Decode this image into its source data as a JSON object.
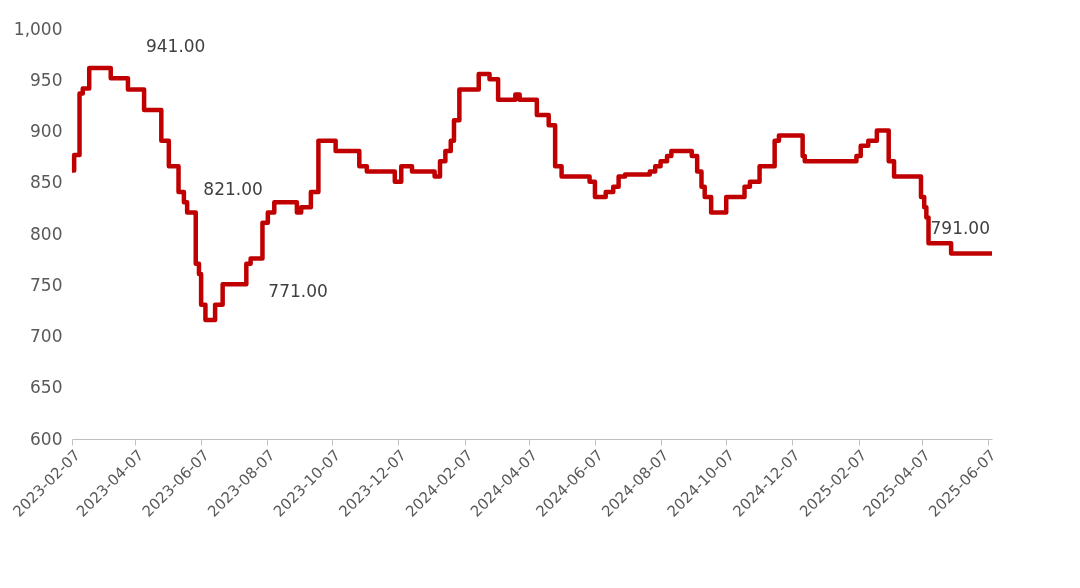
{
  "chart_data": {
    "type": "step",
    "x": [
      "2023-02-07",
      "2023-02-09",
      "2023-02-14",
      "2023-02-17",
      "2023-02-23",
      "2023-03-15",
      "2023-03-31",
      "2023-04-15",
      "2023-05-01",
      "2023-05-08",
      "2023-05-17",
      "2023-05-22",
      "2023-05-25",
      "2023-06-02",
      "2023-06-05",
      "2023-06-07",
      "2023-06-11",
      "2023-06-20",
      "2023-06-27",
      "2023-07-19",
      "2023-07-23",
      "2023-08-03",
      "2023-08-08",
      "2023-08-14",
      "2023-09-04",
      "2023-09-08",
      "2023-09-17",
      "2023-09-24",
      "2023-10-10",
      "2023-11-01",
      "2023-11-08",
      "2023-12-04",
      "2023-12-10",
      "2023-12-20",
      "2024-01-10",
      "2024-01-15",
      "2024-01-20",
      "2024-01-25",
      "2024-01-28",
      "2024-02-02",
      "2024-02-20",
      "2024-03-01",
      "2024-03-09",
      "2024-03-25",
      "2024-03-29",
      "2024-04-14",
      "2024-04-25",
      "2024-05-01",
      "2024-05-07",
      "2024-06-02",
      "2024-06-07",
      "2024-06-17",
      "2024-06-24",
      "2024-06-29",
      "2024-07-05",
      "2024-07-28",
      "2024-08-02",
      "2024-08-07",
      "2024-08-13",
      "2024-08-17",
      "2024-09-05",
      "2024-09-10",
      "2024-09-14",
      "2024-09-17",
      "2024-09-23",
      "2024-10-07",
      "2024-10-24",
      "2024-10-29",
      "2024-11-07",
      "2024-11-21",
      "2024-11-25",
      "2024-12-17",
      "2024-12-19",
      "2025-02-05",
      "2025-02-09",
      "2025-02-16",
      "2025-02-24",
      "2025-03-07",
      "2025-03-12",
      "2025-04-06",
      "2025-04-09",
      "2025-04-11",
      "2025-04-13",
      "2025-05-04",
      "2025-06-11"
    ],
    "series": [
      {
        "color": "#c00000",
        "values": [
          862,
          877,
          937,
          942,
          962,
          952,
          941,
          921,
          891,
          866,
          841,
          831,
          821,
          771,
          761,
          731,
          716,
          731,
          751,
          771,
          776,
          811,
          821,
          831,
          821,
          826,
          841,
          891,
          881,
          866,
          861,
          851,
          866,
          861,
          856,
          871,
          881,
          891,
          911,
          941,
          956,
          951,
          931,
          936,
          931,
          916,
          906,
          866,
          856,
          851,
          836,
          841,
          846,
          856,
          858,
          861,
          866,
          871,
          876,
          881,
          876,
          861,
          846,
          836,
          821,
          836,
          846,
          851,
          866,
          891,
          896,
          876,
          871,
          876,
          886,
          891,
          901,
          871,
          856,
          836,
          826,
          816,
          791,
          781,
          781
        ]
      }
    ],
    "xlim": [
      "2023-02-07",
      "2025-06-11"
    ],
    "xticks": [
      "2023-02-07",
      "2023-04-07",
      "2023-06-07",
      "2023-08-07",
      "2023-10-07",
      "2023-12-07",
      "2024-02-07",
      "2024-04-07",
      "2024-06-07",
      "2024-08-07",
      "2024-10-07",
      "2024-12-07",
      "2025-02-07",
      "2025-04-07",
      "2025-06-07"
    ],
    "ylim": [
      600,
      1000
    ],
    "yticks": [
      600,
      {
        "value": 650,
        "label": "650"
      },
      700,
      750,
      800,
      850,
      900,
      950,
      {
        "value": 1000,
        "label": "1,000"
      }
    ],
    "grid": false,
    "annotations": [
      {
        "text": "941.00",
        "x": "2023-03-31",
        "y": 941
      },
      {
        "text": "821.00",
        "x": "2023-08-08",
        "y": 821
      },
      {
        "text": "771.00",
        "x": "2023-07-19",
        "y": 771
      },
      {
        "text": "791.00",
        "x": "2025-04-13",
        "y": 791
      }
    ]
  }
}
